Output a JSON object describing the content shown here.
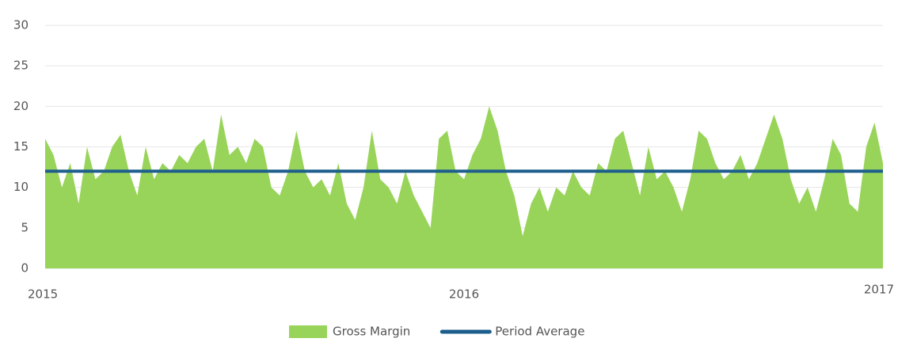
{
  "chart_data": {
    "type": "area",
    "x": [
      2015,
      2015.02,
      2015.04,
      2015.06,
      2015.08,
      2015.1,
      2015.12,
      2015.14,
      2015.16,
      2015.18,
      2015.2,
      2015.22,
      2015.24,
      2015.26,
      2015.28,
      2015.3,
      2015.32,
      2015.34,
      2015.36,
      2015.38,
      2015.4,
      2015.42,
      2015.44,
      2015.46,
      2015.48,
      2015.5,
      2015.52,
      2015.54,
      2015.56,
      2015.58,
      2015.6,
      2015.62,
      2015.64,
      2015.66,
      2015.68,
      2015.7,
      2015.72,
      2015.74,
      2015.76,
      2015.78,
      2015.8,
      2015.82,
      2015.84,
      2015.86,
      2015.88,
      2015.9,
      2015.92,
      2015.94,
      2015.96,
      2015.98,
      2016,
      2016.02,
      2016.04,
      2016.06,
      2016.08,
      2016.1,
      2016.12,
      2016.14,
      2016.16,
      2016.18,
      2016.2,
      2016.22,
      2016.24,
      2016.26,
      2016.28,
      2016.3,
      2016.32,
      2016.34,
      2016.36,
      2016.38,
      2016.4,
      2016.42,
      2016.44,
      2016.46,
      2016.48,
      2016.5,
      2016.52,
      2016.54,
      2016.56,
      2016.58,
      2016.6,
      2016.62,
      2016.64,
      2016.66,
      2016.68,
      2016.7,
      2016.72,
      2016.74,
      2016.76,
      2016.78,
      2016.8,
      2016.82,
      2016.84,
      2016.86,
      2016.88,
      2016.9,
      2016.92,
      2016.94,
      2016.96,
      2016.98,
      2017
    ],
    "series": [
      {
        "name": "Gross Margin",
        "color": "#99d45a",
        "values": [
          16,
          14,
          10,
          13,
          8,
          15,
          11,
          12,
          15,
          16.5,
          12,
          9,
          15,
          11,
          13,
          12,
          14,
          13,
          15,
          16,
          12,
          19,
          14,
          15,
          13,
          16,
          15,
          10,
          9,
          12,
          17,
          12,
          10,
          11,
          9,
          13,
          8,
          6,
          10,
          17,
          11,
          10,
          8,
          12,
          9,
          7,
          5,
          16,
          17,
          12,
          11,
          14,
          16,
          20,
          17,
          12,
          9,
          4,
          8,
          10,
          7,
          10,
          9,
          12,
          10,
          9,
          13,
          12,
          16,
          17,
          13,
          9,
          15,
          11,
          12,
          10,
          7,
          11,
          17,
          16,
          13,
          11,
          12,
          14,
          11,
          13,
          16,
          19,
          16,
          11,
          8,
          10,
          7,
          11,
          16,
          14,
          8,
          7,
          15,
          18,
          13
        ]
      },
      {
        "name": "Period Average",
        "color": "#1d5e8c",
        "type": "line",
        "value": 12
      }
    ],
    "xlim": [
      2015,
      2017
    ],
    "xticks": [
      2015,
      2016,
      2017
    ],
    "ylim": [
      0,
      30
    ],
    "yticks": [
      0,
      5,
      10,
      15,
      20,
      25,
      30
    ],
    "grid": true,
    "legend": "bottom"
  }
}
